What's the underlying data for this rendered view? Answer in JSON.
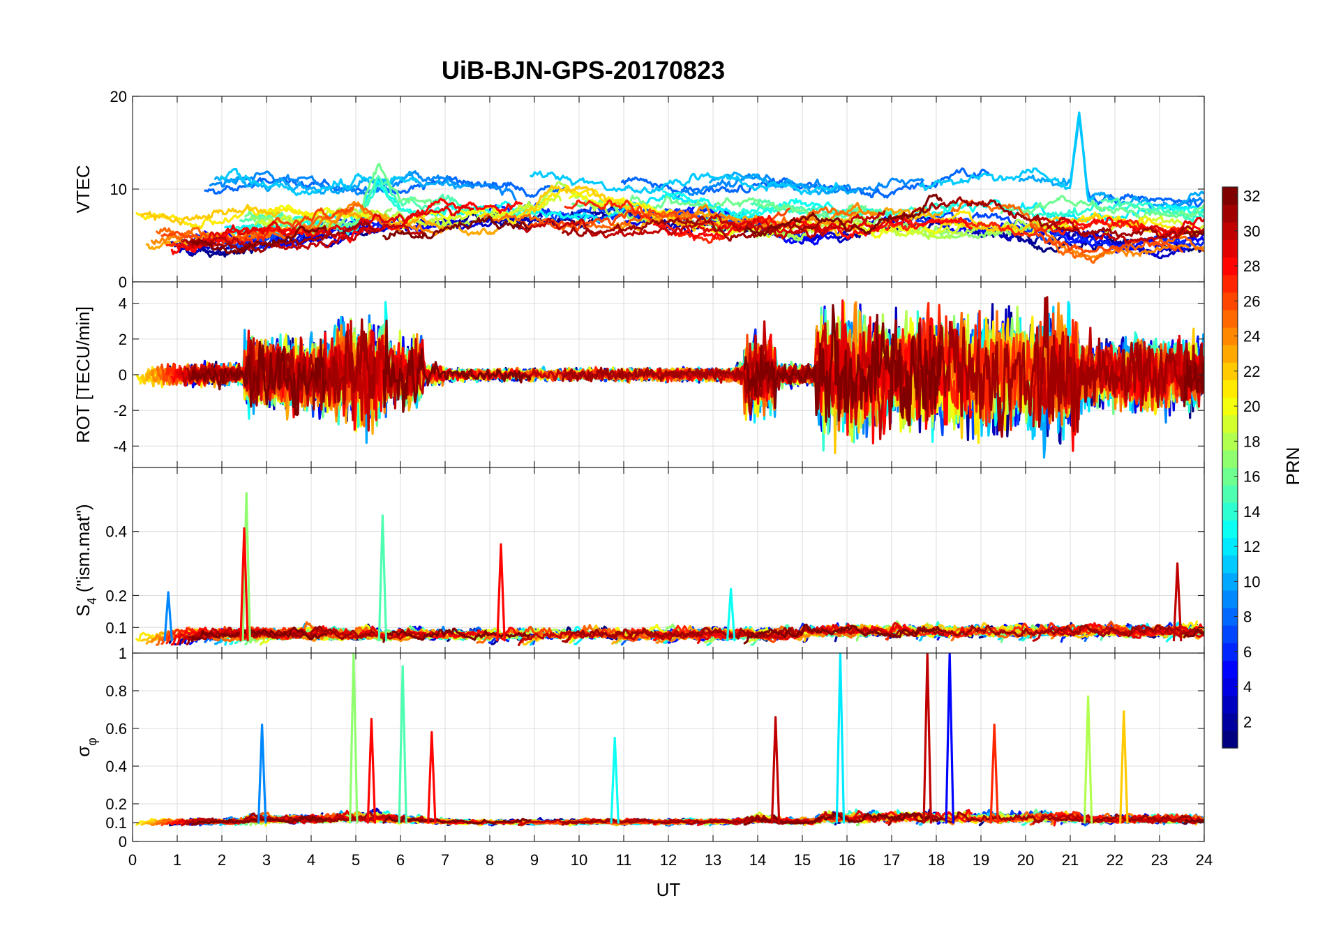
{
  "chart_data": {
    "type": "line",
    "title": "UiB-BJN-GPS-20170823",
    "xlabel": "UT",
    "xlim": [
      0,
      24
    ],
    "xticks": [
      0,
      1,
      2,
      3,
      4,
      5,
      6,
      7,
      8,
      9,
      10,
      11,
      12,
      13,
      14,
      15,
      16,
      17,
      18,
      19,
      20,
      21,
      22,
      23,
      24
    ],
    "grid": true,
    "panels": [
      {
        "id": "vtec",
        "ylabel": "VTEC",
        "ylim": [
          0,
          20
        ],
        "yticks": [
          0,
          10,
          20
        ],
        "series_summary": [
          {
            "prn": 5,
            "x": [
              0,
              2,
              4,
              5,
              6,
              7,
              8,
              9,
              10,
              12,
              14,
              15,
              16,
              17,
              18,
              19,
              20,
              21,
              22,
              23,
              24
            ],
            "y": [
              4.5,
              4.2,
              5.0,
              6.0,
              5.5,
              6.5,
              7.0,
              7.5,
              7.5,
              7.0,
              6.5,
              5.0,
              5.5,
              6.5,
              6.5,
              6.0,
              5.5,
              5.0,
              4.5,
              4.0,
              4.0
            ]
          },
          {
            "prn": 10,
            "x": [
              18,
              18.5,
              19,
              19.5,
              20,
              20.5,
              21,
              21.2,
              21.4
            ],
            "y": [
              10.5,
              11.0,
              11.5,
              11.0,
              11.0,
              10.5,
              10.0,
              18.0,
              9.0
            ]
          },
          {
            "prn": 12,
            "x": [
              5,
              5.5,
              6,
              7,
              8,
              9,
              10,
              11,
              12,
              13
            ],
            "y": [
              6.0,
              11.5,
              8.0,
              7.5,
              7.0,
              7.5,
              7.5,
              8.0,
              9.0,
              7.5
            ]
          },
          {
            "prn": 20,
            "x": [
              8.5,
              9,
              9.5,
              10,
              10.5,
              11,
              12,
              13,
              14
            ],
            "y": [
              7.0,
              8.0,
              10.0,
              9.5,
              8.5,
              8.0,
              7.0,
              6.0,
              6.0
            ]
          },
          {
            "prn": 24,
            "x": [
              2,
              3,
              4,
              5,
              6,
              17,
              18,
              19,
              20,
              21
            ],
            "y": [
              4.5,
              5.5,
              6.0,
              7.5,
              6.0,
              7.0,
              7.5,
              8.0,
              6.5,
              3.5
            ]
          },
          {
            "prn": 28,
            "x": [
              0,
              2,
              4,
              6,
              7,
              8,
              9,
              10,
              11,
              12,
              13,
              14
            ],
            "y": [
              4.0,
              4.5,
              5.5,
              6.0,
              8.0,
              8.5,
              9.0,
              8.5,
              7.5,
              6.0,
              5.0,
              6.0
            ]
          },
          {
            "prn": 31,
            "x": [
              0,
              1,
              2,
              3,
              4,
              5,
              6,
              16,
              17,
              18,
              19,
              20,
              21,
              22,
              23,
              24
            ],
            "y": [
              3.5,
              4.0,
              4.0,
              4.5,
              4.5,
              5.0,
              5.5,
              6.0,
              7.0,
              9.0,
              8.0,
              6.5,
              6.0,
              5.5,
              5.0,
              5.0
            ]
          }
        ]
      },
      {
        "id": "rot",
        "ylabel": "ROT [TECU/min]",
        "ylim": [
          -5.2,
          5.2
        ],
        "yticks": [
          -4,
          -2,
          0,
          2,
          4
        ],
        "note": "dense noisy fluctuations around 0; strongest activity 15.3-21 UT, peaks near ±5"
      },
      {
        "id": "s4",
        "ylabel": "S4 (\"ism.mat\")",
        "ylabel_main": "S",
        "ylabel_sub": "4",
        "ylabel_rest": " (\"ism.mat\")",
        "ylim": [
          0.02,
          0.6
        ],
        "yticks": [
          0.1,
          0.2,
          0.4
        ],
        "peaks": [
          {
            "x": 0.8,
            "y": 0.21
          },
          {
            "x": 2.55,
            "y": 0.52
          },
          {
            "x": 2.5,
            "y": 0.41
          },
          {
            "x": 5.6,
            "y": 0.45
          },
          {
            "x": 8.25,
            "y": 0.36
          },
          {
            "x": 13.4,
            "y": 0.22
          },
          {
            "x": 23.4,
            "y": 0.3
          }
        ]
      },
      {
        "id": "sigma_phi",
        "ylabel": "σφ",
        "ylabel_main": "σ",
        "ylabel_sub": "φ",
        "ylim": [
          0,
          1
        ],
        "yticks": [
          0,
          0.1,
          0.2,
          0.4,
          0.6,
          0.8,
          1
        ],
        "peaks": [
          {
            "x": 2.9,
            "y": 0.62
          },
          {
            "x": 4.95,
            "y": 1.0
          },
          {
            "x": 5.35,
            "y": 0.65
          },
          {
            "x": 6.05,
            "y": 0.93
          },
          {
            "x": 6.7,
            "y": 0.58
          },
          {
            "x": 10.8,
            "y": 0.55
          },
          {
            "x": 14.4,
            "y": 0.66
          },
          {
            "x": 15.85,
            "y": 1.0
          },
          {
            "x": 17.8,
            "y": 1.0
          },
          {
            "x": 18.3,
            "y": 1.0
          },
          {
            "x": 19.3,
            "y": 0.62
          },
          {
            "x": 21.4,
            "y": 0.77
          },
          {
            "x": 22.2,
            "y": 0.69
          }
        ]
      }
    ],
    "colorbar": {
      "label": "PRN",
      "colormap": "jet",
      "range": [
        1,
        32
      ],
      "ticks": [
        2,
        4,
        6,
        8,
        10,
        12,
        14,
        16,
        18,
        20,
        22,
        24,
        26,
        28,
        30,
        32
      ]
    },
    "prns": [
      1,
      2,
      3,
      4,
      5,
      6,
      7,
      8,
      9,
      10,
      11,
      12,
      13,
      14,
      15,
      16,
      17,
      18,
      19,
      20,
      21,
      22,
      23,
      24,
      25,
      26,
      27,
      28,
      29,
      30,
      31,
      32
    ]
  }
}
